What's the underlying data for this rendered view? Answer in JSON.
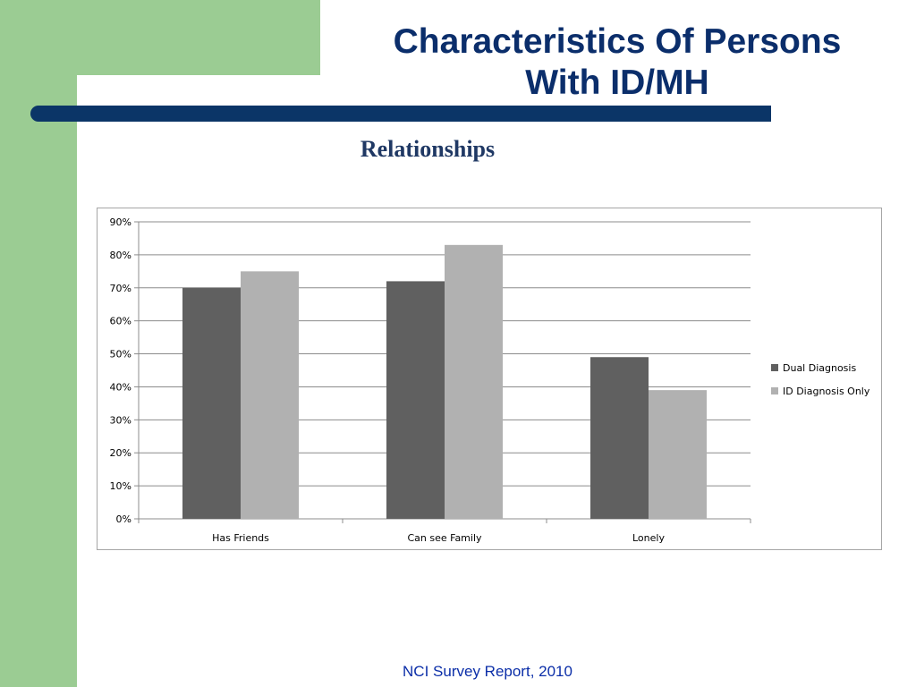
{
  "slide": {
    "title_line1": "Characteristics Of Persons",
    "title_line2": "With ID/MH",
    "subtitle": "Relationships",
    "footer": "NCI Survey Report, 2010"
  },
  "colors": {
    "green_accent": "#9bcc93",
    "navy_rule": "#0b3567",
    "title_text": "#0b2e6b"
  },
  "chart_data": {
    "type": "bar",
    "title": "",
    "xlabel": "",
    "ylabel": "",
    "categories": [
      "Has Friends",
      "Can see Family",
      "Lonely"
    ],
    "series": [
      {
        "name": "Dual Diagnosis",
        "values": [
          70,
          72,
          49
        ],
        "color": "#606060"
      },
      {
        "name": "ID Diagnosis Only",
        "values": [
          75,
          83,
          39
        ],
        "color": "#b1b1b1"
      }
    ],
    "ylim": [
      0,
      90
    ],
    "ytick_step": 10,
    "ytick_format": "percent",
    "grid": true,
    "legend": "right"
  }
}
